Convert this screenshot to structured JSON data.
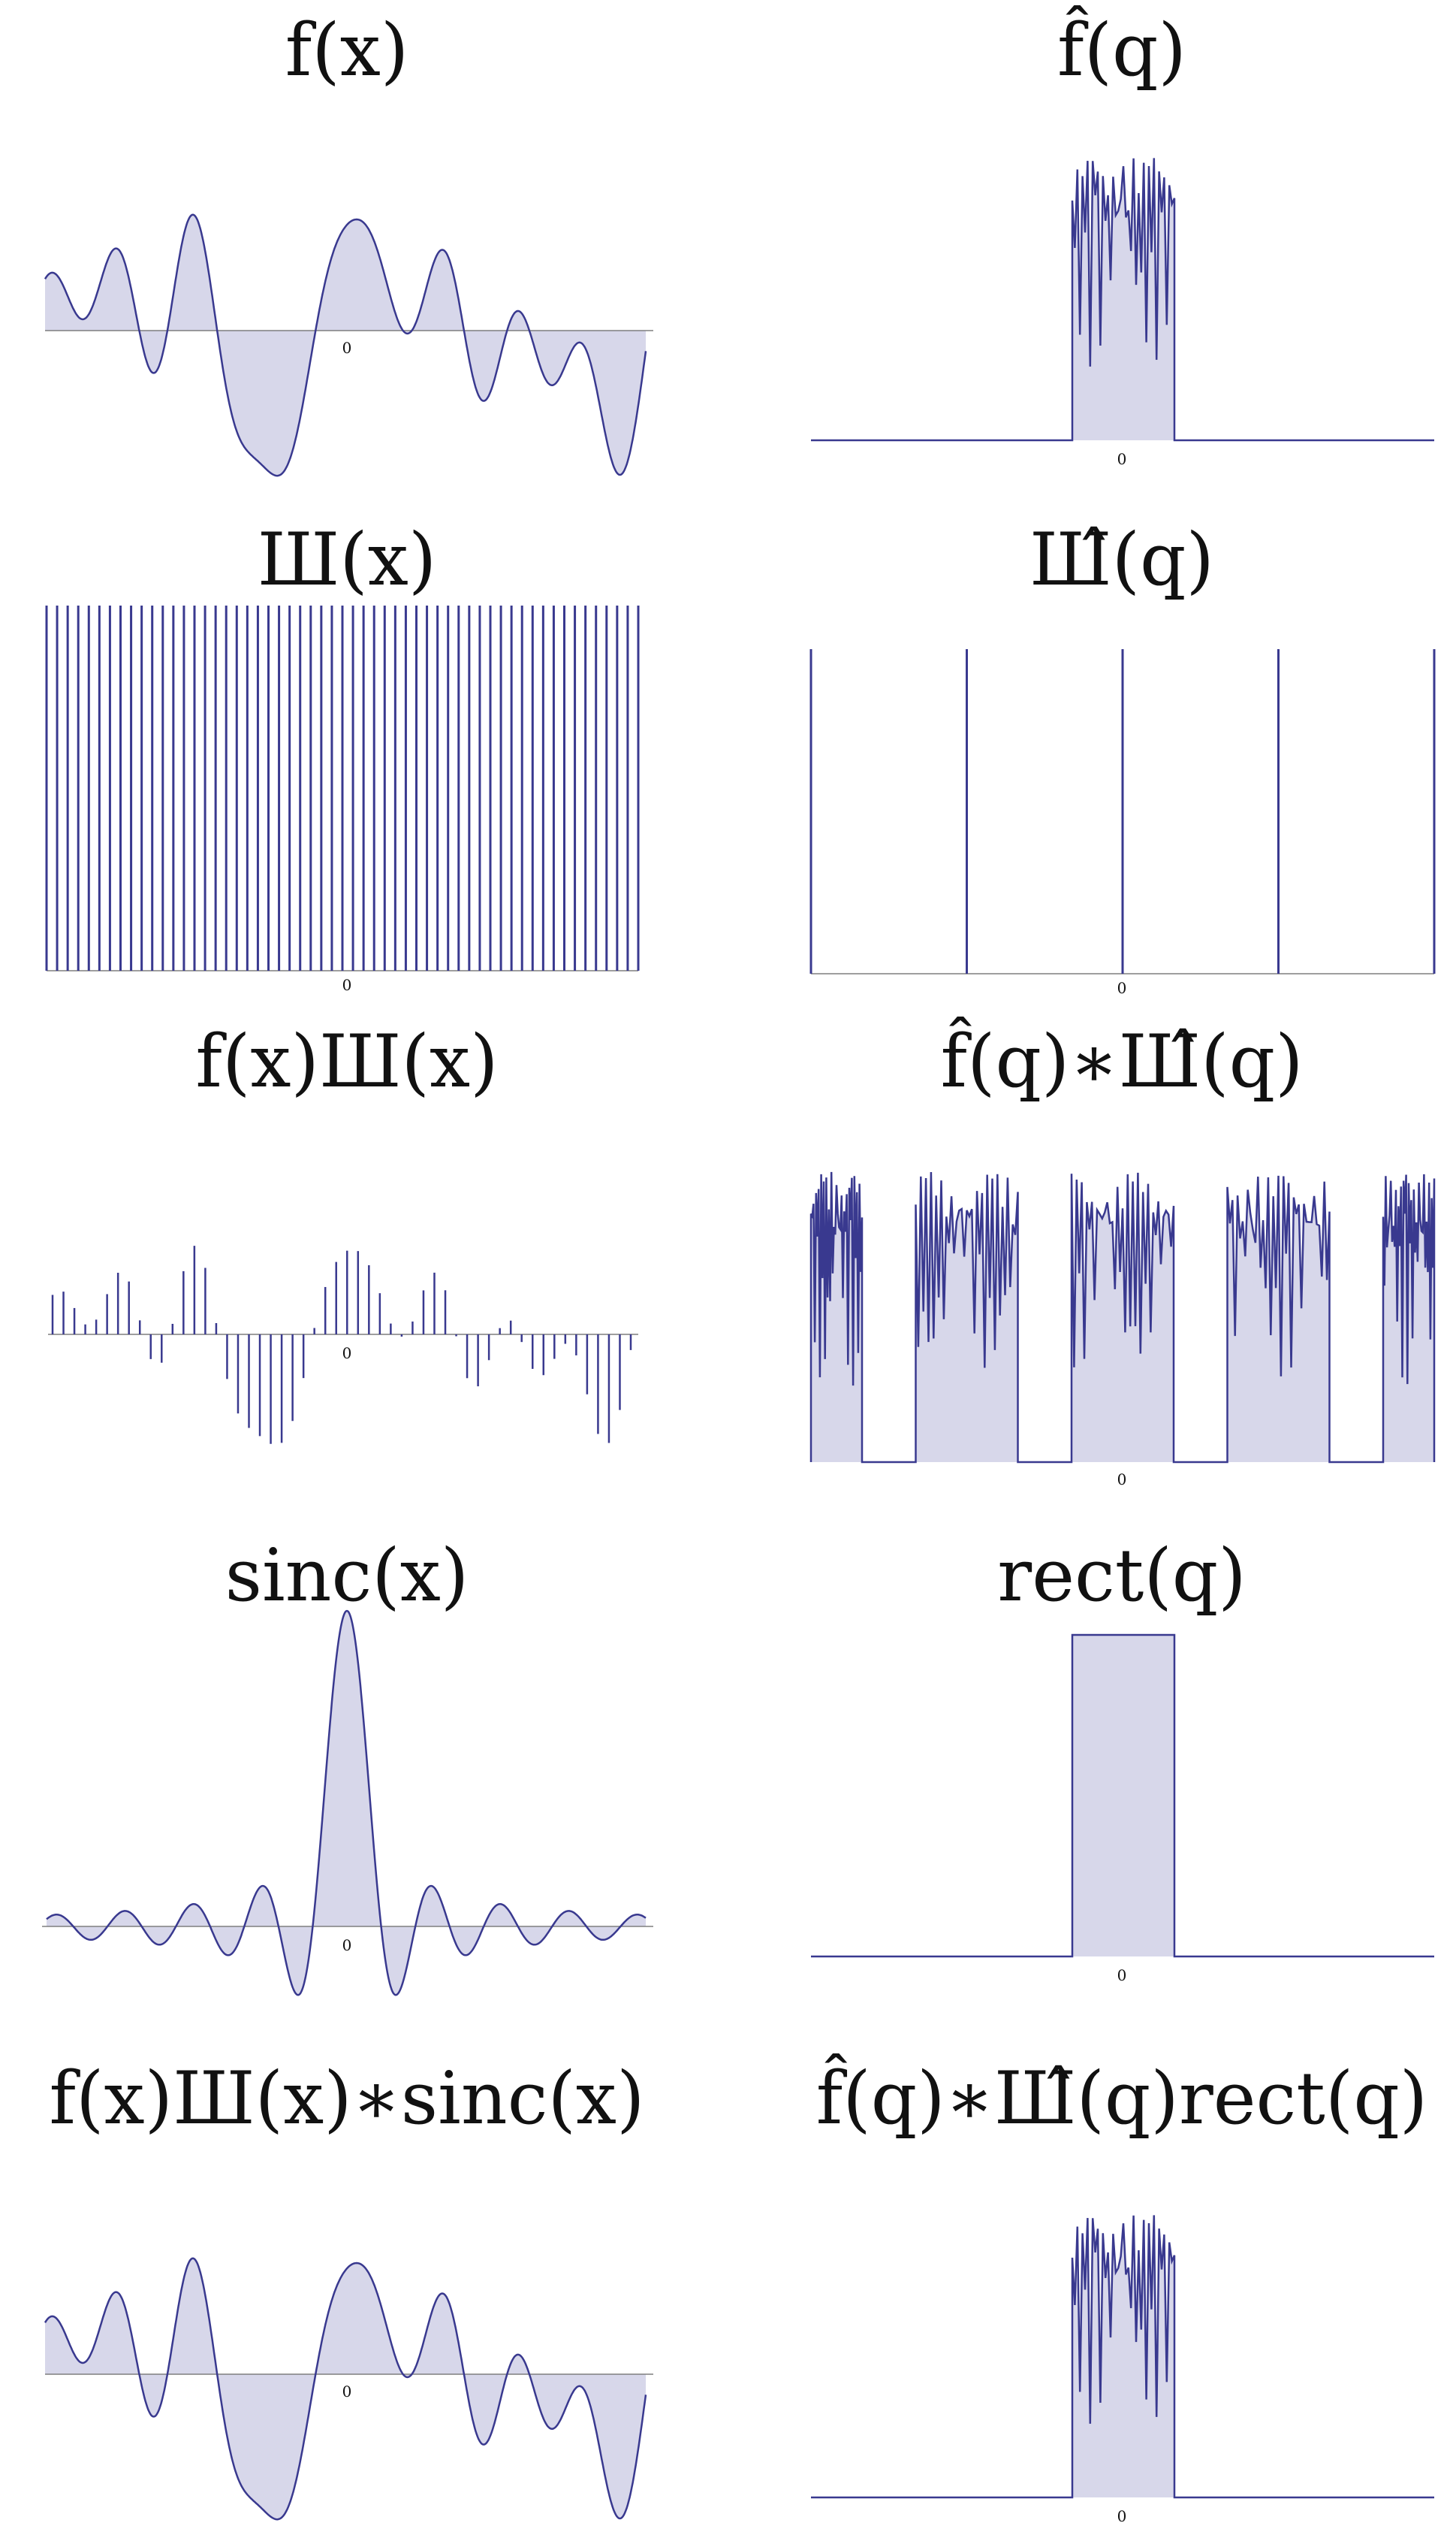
{
  "figure": {
    "description_layout": "5 rows x 2 columns",
    "colors": {
      "line": "#39398f",
      "fill": "#d7d7ea",
      "axis": "#7f7f7f",
      "text": "#111111"
    }
  },
  "panels": [
    {
      "id": "fx",
      "title": "f(x)",
      "tick": "0",
      "kind": "signal"
    },
    {
      "id": "fhat",
      "title": "f̂(q)",
      "tick": "0",
      "kind": "spectrum"
    },
    {
      "id": "comb",
      "title": "Ш(x)",
      "tick": "0",
      "kind": "comb",
      "teeth": 57
    },
    {
      "id": "combhat",
      "title": "Ш̂(q)",
      "tick": "0",
      "kind": "comb",
      "teeth": 5
    },
    {
      "id": "sampled",
      "title": "f(x)Ш(x)",
      "tick": "0",
      "kind": "sampled"
    },
    {
      "id": "periodic",
      "title": "f̂(q)∗Ш̂(q)",
      "tick": "0",
      "kind": "periodic"
    },
    {
      "id": "sinc",
      "title": "sinc(x)",
      "tick": "0",
      "kind": "sinc"
    },
    {
      "id": "rect",
      "title": "rect(q)",
      "tick": "0",
      "kind": "rect"
    },
    {
      "id": "recon",
      "title": "f(x)Ш(x)∗sinc(x)",
      "tick": "0",
      "kind": "signal"
    },
    {
      "id": "reconhat",
      "title": "f̂(q)∗Ш̂(q)rect(q)",
      "tick": "0",
      "kind": "spectrum"
    }
  ]
}
